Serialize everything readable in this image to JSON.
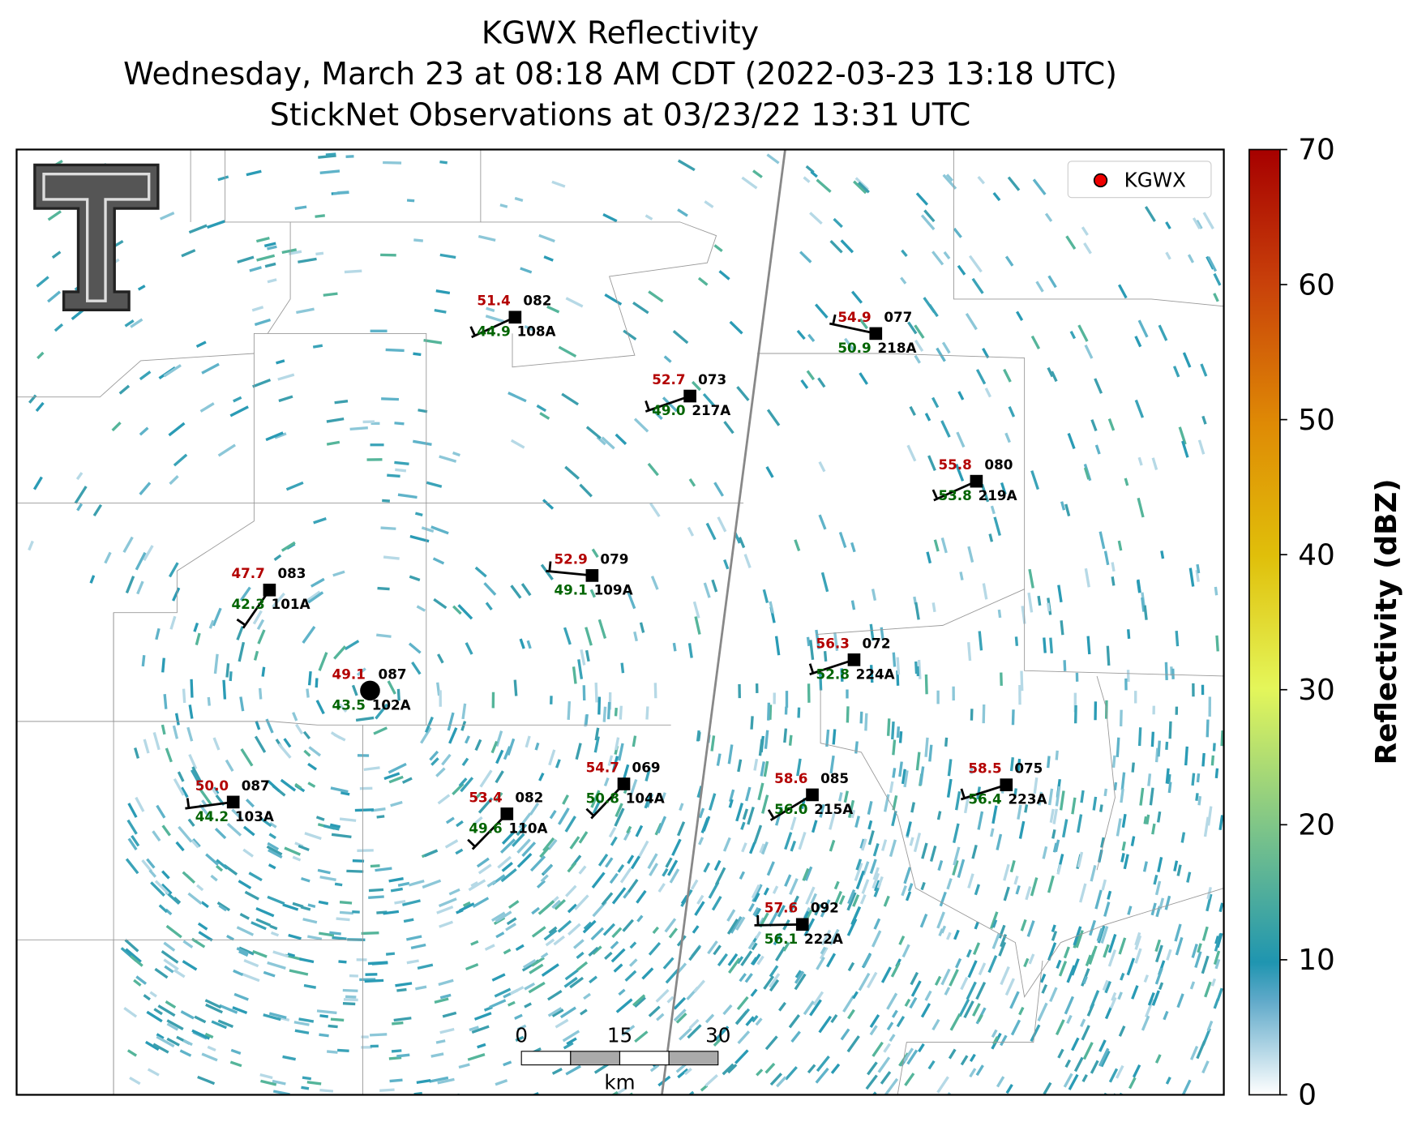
{
  "title": [
    "KGWX Reflectivity",
    "Wednesday, March 23 at 08:18 AM CDT (2022-03-23 13:18 UTC)",
    "StickNet Observations at 03/23/22 13:31 UTC"
  ],
  "legend": {
    "label": "KGWX"
  },
  "stations": [
    {
      "temperature": "51.4",
      "pressure": "082",
      "dewpoint": "44.9",
      "id": "108A"
    },
    {
      "temperature": "52.7",
      "pressure": "073",
      "dewpoint": "49.0",
      "id": "217A"
    },
    {
      "temperature": "54.9",
      "pressure": "077",
      "dewpoint": "50.9",
      "id": "218A"
    },
    {
      "temperature": "55.8",
      "pressure": "080",
      "dewpoint": "53.8",
      "id": "219A"
    },
    {
      "temperature": "47.7",
      "pressure": "083",
      "dewpoint": "42.3",
      "id": "101A"
    },
    {
      "temperature": "52.9",
      "pressure": "079",
      "dewpoint": "49.1",
      "id": "109A"
    },
    {
      "temperature": "56.3",
      "pressure": "072",
      "dewpoint": "52.8",
      "id": "224A"
    },
    {
      "temperature": "49.1",
      "pressure": "087",
      "dewpoint": "43.5",
      "id": "102A"
    },
    {
      "temperature": "50.0",
      "pressure": "087",
      "dewpoint": "44.2",
      "id": "103A"
    },
    {
      "temperature": "53.4",
      "pressure": "082",
      "dewpoint": "49.6",
      "id": "110A"
    },
    {
      "temperature": "54.7",
      "pressure": "069",
      "dewpoint": "50.8",
      "id": "104A"
    },
    {
      "temperature": "58.6",
      "pressure": "085",
      "dewpoint": "56.0",
      "id": "215A"
    },
    {
      "temperature": "58.5",
      "pressure": "075",
      "dewpoint": "56.4",
      "id": "223A"
    },
    {
      "temperature": "57.6",
      "pressure": "092",
      "dewpoint": "56.1",
      "id": "222A"
    }
  ],
  "scale_bar": {
    "ticks": [
      0,
      15,
      30
    ],
    "unit": "km"
  },
  "colorbar": {
    "label": "Reflectivity (dBZ)",
    "ticks": [
      0,
      10,
      20,
      30,
      40,
      50,
      60,
      70
    ]
  }
}
